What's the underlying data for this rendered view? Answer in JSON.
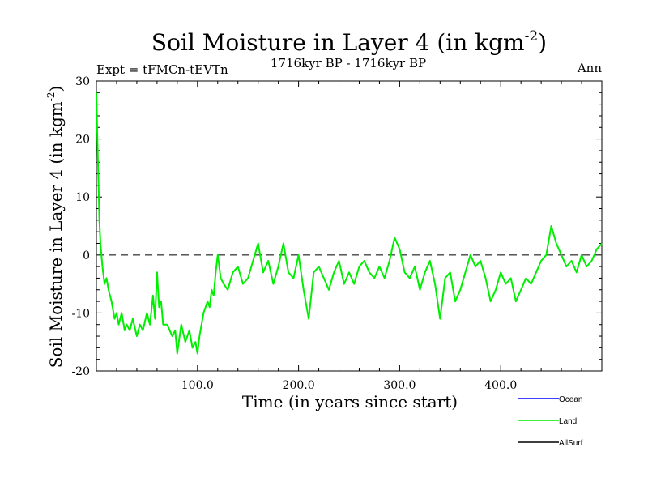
{
  "chart_data": {
    "type": "line",
    "title": {
      "main": "Soil Moisture in Layer 4 (in kgm",
      "sup": "-2",
      "end": ")"
    },
    "subtitle": "1716kyr BP - 1716kyr BP",
    "left_label": "Expt = tFMCn-tEVTn",
    "right_label": "Ann",
    "xlabel": "Time (in years since start)",
    "ylabel": {
      "main": "Soil Moisture in Layer 4 (in kgm",
      "sup": "-2",
      "end": ")"
    },
    "xlim": [
      0,
      500
    ],
    "ylim": [
      -20,
      30
    ],
    "x_ticks": [
      100,
      200,
      300,
      400
    ],
    "x_tick_labels": [
      "100.0",
      "200.0",
      "300.0",
      "400.0"
    ],
    "y_ticks": [
      -20,
      -10,
      0,
      10,
      20,
      30
    ],
    "y_tick_labels": [
      "-20",
      "-10",
      "0",
      "10",
      "20",
      "30"
    ],
    "reference_line": 0,
    "legend": [
      {
        "name": "Ocean",
        "color": "#0000ff"
      },
      {
        "name": "Land",
        "color": "#00ee00"
      },
      {
        "name": "AllSurf",
        "color": "#000000"
      }
    ],
    "series": [
      {
        "name": "Land",
        "color": "#00ee00",
        "x": [
          0,
          1,
          2,
          3,
          4,
          5,
          6,
          8,
          10,
          12,
          15,
          18,
          20,
          22,
          25,
          28,
          30,
          33,
          36,
          40,
          43,
          46,
          50,
          53,
          56,
          58,
          60,
          62,
          64,
          66,
          70,
          75,
          78,
          80,
          84,
          88,
          92,
          95,
          98,
          100,
          102,
          104,
          106,
          108,
          110,
          112,
          114,
          116,
          118,
          120,
          123,
          126,
          130,
          135,
          140,
          145,
          150,
          155,
          160,
          165,
          170,
          175,
          180,
          185,
          190,
          195,
          200,
          205,
          210,
          215,
          220,
          225,
          230,
          235,
          240,
          245,
          250,
          255,
          260,
          265,
          270,
          275,
          280,
          285,
          290,
          295,
          300,
          305,
          310,
          315,
          320,
          325,
          330,
          335,
          340,
          345,
          350,
          355,
          360,
          365,
          370,
          375,
          380,
          385,
          390,
          395,
          400,
          405,
          410,
          415,
          420,
          425,
          430,
          435,
          440,
          445,
          450,
          455,
          460,
          465,
          470,
          475,
          480,
          485,
          490,
          495,
          500
        ],
        "values": [
          28,
          20,
          13,
          6,
          2,
          0,
          -2,
          -5,
          -4,
          -6,
          -8,
          -11,
          -10,
          -12,
          -10,
          -13,
          -12,
          -13,
          -11,
          -14,
          -12,
          -13,
          -10,
          -12,
          -7,
          -11,
          -3,
          -9,
          -8,
          -12,
          -12,
          -14,
          -13,
          -17,
          -12,
          -15,
          -13,
          -16,
          -15,
          -17,
          -14,
          -12,
          -10,
          -9,
          -8,
          -9,
          -6,
          -7,
          -3,
          0,
          -4,
          -5,
          -6,
          -3,
          -2,
          -5,
          -4,
          -1,
          2,
          -3,
          -1,
          -5,
          -2,
          2,
          -3,
          -4,
          0,
          -6,
          -11,
          -3,
          -2,
          -4,
          -6,
          -3,
          -1,
          -5,
          -3,
          -5,
          -2,
          -1,
          -3,
          -4,
          -2,
          -4,
          -1,
          3,
          1,
          -3,
          -4,
          -2,
          -6,
          -3,
          -1,
          -5,
          -11,
          -4,
          -3,
          -8,
          -6,
          -3,
          0,
          -2,
          -1,
          -4,
          -8,
          -6,
          -3,
          -5,
          -4,
          -8,
          -6,
          -4,
          -5,
          -3,
          -1,
          0,
          5,
          2,
          0,
          -2,
          -1,
          -3,
          0,
          -2,
          -1,
          1,
          2
        ]
      }
    ]
  }
}
